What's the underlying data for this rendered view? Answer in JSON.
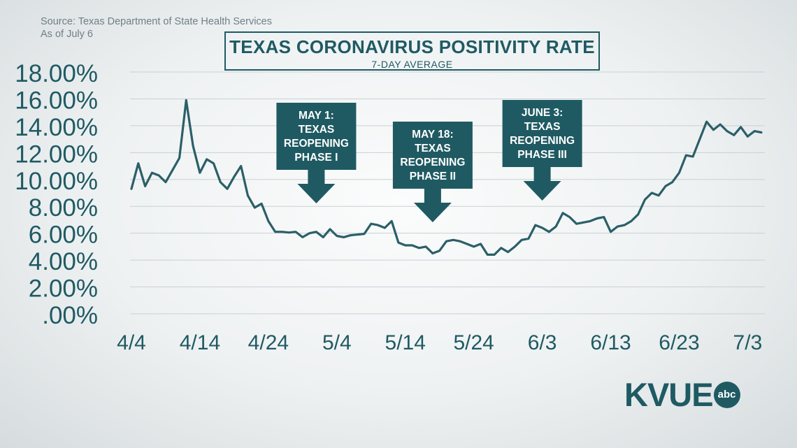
{
  "source_line1": "Source: Texas Department of State Health Services",
  "source_line2": "As of July 6",
  "logo": {
    "text": "KVUE",
    "badge": "abc"
  },
  "colors": {
    "accent": "#1f5a63",
    "line": "#2b5f68",
    "grid": "#c9d0d3",
    "text": "#1f5a63"
  },
  "chart_data": {
    "type": "line",
    "title": "TEXAS CORONAVIRUS POSITIVITY RATE",
    "subtitle": "7-DAY AVERAGE",
    "xlabel": "",
    "ylabel": "",
    "ylim": [
      0,
      18
    ],
    "y_ticks": [
      0,
      2,
      4,
      6,
      8,
      10,
      12,
      14,
      16,
      18
    ],
    "y_tick_labels": [
      ".00%",
      "2.00%",
      "4.00%",
      "6.00%",
      "8.00%",
      "10.00%",
      "12.00%",
      "14.00%",
      "16.00%",
      "18.00%"
    ],
    "x_ticks": [
      0,
      10,
      20,
      30,
      40,
      50,
      60,
      70,
      80,
      90
    ],
    "x_tick_labels": [
      "4/4",
      "4/14",
      "4/24",
      "5/4",
      "5/14",
      "5/24",
      "6/3",
      "6/13",
      "6/23",
      "7/3"
    ],
    "grid": "horizontal",
    "series": [
      {
        "values": [
          9.3,
          11.2,
          9.5,
          10.5,
          10.3,
          9.8,
          10.7,
          11.6,
          15.9,
          12.5,
          10.5,
          11.5,
          11.2,
          9.8,
          9.3,
          10.2,
          11.0,
          8.8,
          7.9,
          8.2,
          6.9,
          6.1,
          6.1,
          6.05,
          6.1,
          5.7,
          6.0,
          6.1,
          5.7,
          6.3,
          5.8,
          5.7,
          5.85,
          5.9,
          5.95,
          6.7,
          6.6,
          6.4,
          6.9,
          5.3,
          5.1,
          5.1,
          4.9,
          5.0,
          4.5,
          4.7,
          5.4,
          5.5,
          5.4,
          5.2,
          5.0,
          5.2,
          4.4,
          4.4,
          4.9,
          4.6,
          5.0,
          5.5,
          5.6,
          6.6,
          6.4,
          6.1,
          6.5,
          7.5,
          7.2,
          6.7,
          6.8,
          6.9,
          7.1,
          7.2,
          6.1,
          6.5,
          6.6,
          6.9,
          7.4,
          8.5,
          9.0,
          8.8,
          9.5,
          9.8,
          10.5,
          11.8,
          11.7,
          13.0,
          14.3,
          13.7,
          14.1,
          13.6,
          13.3,
          13.9,
          13.2,
          13.6,
          13.5
        ]
      }
    ],
    "annotations": [
      {
        "lines": [
          "MAY 1:",
          "TEXAS",
          "REOPENING",
          "PHASE I"
        ],
        "x": 27
      },
      {
        "lines": [
          "MAY 18:",
          "TEXAS",
          "REOPENING",
          "PHASE II"
        ],
        "x": 44
      },
      {
        "lines": [
          "JUNE 3:",
          "TEXAS",
          "REOPENING",
          "PHASE III"
        ],
        "x": 60
      }
    ]
  }
}
